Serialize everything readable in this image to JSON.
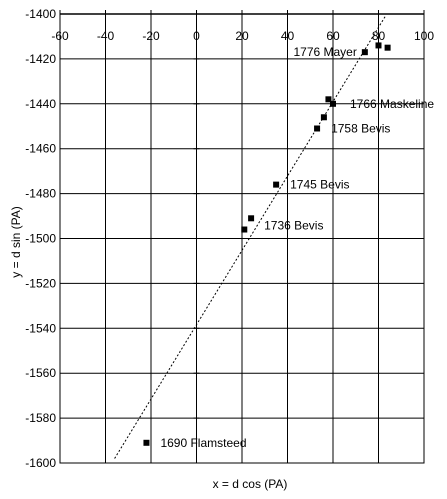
{
  "chart_data": {
    "type": "scatter",
    "title": "",
    "xlabel": "x = d cos (PA)",
    "ylabel": "y = d sin (PA)",
    "xlim": [
      -60,
      100
    ],
    "ylim": [
      -1600,
      -1400
    ],
    "x_ticks": [
      -60,
      -40,
      -20,
      0,
      20,
      40,
      60,
      80,
      100
    ],
    "y_ticks": [
      -1400,
      -1420,
      -1440,
      -1460,
      -1480,
      -1500,
      -1520,
      -1540,
      -1560,
      -1580,
      -1600
    ],
    "grid": true,
    "series": [
      {
        "points": [
          {
            "x": -22,
            "y": -1591
          },
          {
            "x": 21,
            "y": -1496
          },
          {
            "x": 24,
            "y": -1491
          },
          {
            "x": 35,
            "y": -1476
          },
          {
            "x": 53,
            "y": -1451
          },
          {
            "x": 56,
            "y": -1446
          },
          {
            "x": 58,
            "y": -1438
          },
          {
            "x": 60,
            "y": -1440
          },
          {
            "x": 74,
            "y": -1417
          },
          {
            "x": 80,
            "y": -1414
          },
          {
            "x": 84,
            "y": -1415
          }
        ]
      }
    ],
    "trendline": {
      "style": "dotted",
      "from": {
        "x": -36,
        "y": -1598
      },
      "to": {
        "x": 83,
        "y": -1401
      }
    },
    "annotations": [
      {
        "text": "1690 Flamsteed",
        "x": -22,
        "y": -1591
      },
      {
        "text": "1736 Bevis",
        "x": 24,
        "y": -1491
      },
      {
        "text": "1745 Bevis",
        "x": 35,
        "y": -1476
      },
      {
        "text": "1758 Bevis",
        "x": 53,
        "y": -1451
      },
      {
        "text": "1766 Maskeline",
        "x": 60,
        "y": -1440
      },
      {
        "text": "1776 Mayer",
        "x": 74,
        "y": -1417
      }
    ]
  }
}
